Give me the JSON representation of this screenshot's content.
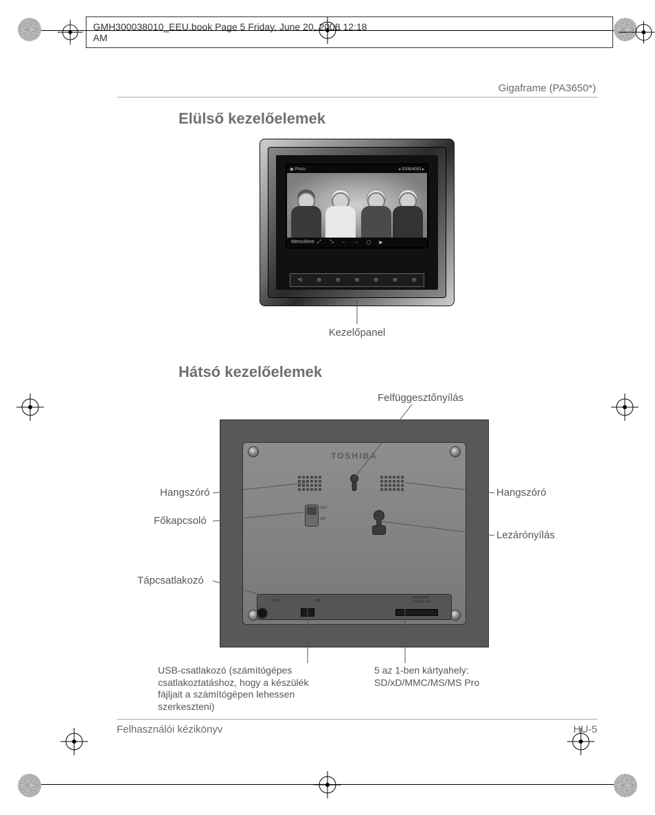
{
  "doc_header": "GMH300038010_EEU.book  Page 5  Friday, June 20, 2008  12:18 AM",
  "model": "Gigaframe (PA3650*)",
  "section_front": "Elülső kezelőelemek",
  "front_caption": "Kezelőpanel",
  "lcd_header_left": "▣ Photo",
  "lcd_header_right": "◂ 2008/4083 ▸",
  "lcd_footer_items": [
    "Menu",
    "More",
    "⤢",
    "⤡",
    "←",
    "→",
    "▢",
    "▶"
  ],
  "ctrl_strip_items": [
    "⟲",
    "⊖",
    "⊖",
    "⊖",
    "⊖",
    "⊖",
    "⊖"
  ],
  "section_rear": "Hátsó kezelőelemek",
  "rear_top_label": "Felfüggesztőnyílás",
  "labels": {
    "speaker_left": "Hangszóró",
    "speaker_right": "Hangszóró",
    "power": "Főkapcsoló",
    "dc": "Tápcsatlakozó",
    "lock": "Lezárónyílás",
    "usb": "USB-csatlakozó (számítógépes csatlakoztatáshoz, hogy a készülék fájljait a számítógépen lehessen szerkeszteni)",
    "card": "5 az 1-ben kártyahely:\nSD/xD/MMC/MS/MS Pro"
  },
  "brand": "TOSHIBA",
  "sw_off": "OFF",
  "sw_on": "ON",
  "port_dc_tag": "DC IN",
  "port_usb_tag": "USB",
  "port_card_tag": "SD/xD/MMC\nMS/MS Pro",
  "footer_left": "Felhasználói kézikönyv",
  "footer_right": "HU-5"
}
